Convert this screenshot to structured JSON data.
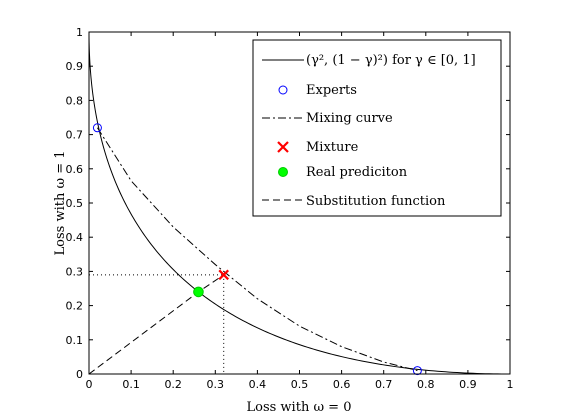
{
  "chart_data": {
    "type": "line",
    "xlabel": "Loss with ω = 0",
    "ylabel": "Loss with ω = 1",
    "xlim": [
      0,
      1
    ],
    "ylim": [
      0,
      1
    ],
    "xticks": [
      "0",
      "0.1",
      "0.2",
      "0.3",
      "0.4",
      "0.5",
      "0.6",
      "0.7",
      "0.8",
      "0.9",
      "1"
    ],
    "yticks": [
      "0",
      "0.1",
      "0.2",
      "0.3",
      "0.4",
      "0.5",
      "0.6",
      "0.7",
      "0.8",
      "0.9",
      "1"
    ],
    "grid": false,
    "legend_position": "top-right",
    "legend": [
      {
        "label": "(γ², (1 − γ)²)  for γ ∈ [0, 1]",
        "style": "solid-line"
      },
      {
        "label": "Experts",
        "style": "open-circle-marker"
      },
      {
        "label": "Mixing curve",
        "style": "dash-dot-line"
      },
      {
        "label": "Mixture",
        "style": "x-marker"
      },
      {
        "label": "Real prediciton",
        "style": "filled-circle-marker"
      },
      {
        "label": "Substitution function",
        "style": "dashed-line"
      }
    ],
    "series": [
      {
        "name": "(γ², (1 − γ)²)  for γ ∈ [0, 1]",
        "kind": "parametric",
        "x": [
          0,
          0.0025,
          0.01,
          0.0225,
          0.04,
          0.0625,
          0.09,
          0.1225,
          0.16,
          0.2025,
          0.25,
          0.3025,
          0.36,
          0.4225,
          0.49,
          0.5625,
          0.64,
          0.7225,
          0.81,
          0.9025,
          1
        ],
        "y": [
          1,
          0.9025,
          0.81,
          0.7225,
          0.64,
          0.5625,
          0.49,
          0.4225,
          0.36,
          0.3025,
          0.25,
          0.2025,
          0.16,
          0.1225,
          0.09,
          0.0625,
          0.04,
          0.0225,
          0.01,
          0.0025,
          0
        ],
        "color": "#000000"
      },
      {
        "name": "Experts",
        "kind": "markers",
        "x": [
          0.02,
          0.78
        ],
        "y": [
          0.72,
          0.01
        ],
        "color": "#0000ff"
      },
      {
        "name": "Mixing curve",
        "kind": "dash-dot",
        "x": [
          0.02,
          0.1,
          0.2,
          0.3,
          0.4,
          0.5,
          0.6,
          0.7,
          0.78
        ],
        "y": [
          0.72,
          0.565,
          0.43,
          0.32,
          0.22,
          0.14,
          0.08,
          0.035,
          0.01
        ],
        "color": "#000000"
      },
      {
        "name": "Mixture",
        "kind": "markers",
        "x": [
          0.32
        ],
        "y": [
          0.29
        ],
        "color": "#ff0000"
      },
      {
        "name": "Real prediciton",
        "kind": "markers",
        "x": [
          0.26
        ],
        "y": [
          0.24
        ],
        "color": "#00ff00"
      },
      {
        "name": "Substitution function",
        "kind": "dashed",
        "x": [
          0,
          0.26,
          0.32
        ],
        "y": [
          0,
          0.24,
          0.29
        ],
        "color": "#000000"
      }
    ],
    "guides": {
      "mixture_x": 0.32,
      "mixture_y": 0.29
    }
  }
}
